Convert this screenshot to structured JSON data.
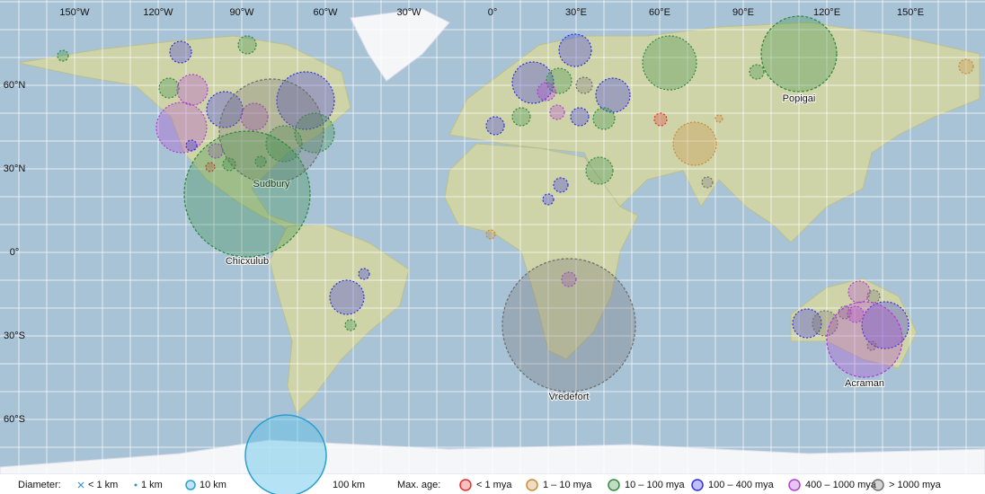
{
  "map": {
    "lon_ticks": [
      {
        "value": -150,
        "label": "150°W"
      },
      {
        "value": -120,
        "label": "120°W"
      },
      {
        "value": -90,
        "label": "90°W"
      },
      {
        "value": -60,
        "label": "60°W"
      },
      {
        "value": -30,
        "label": "30°W"
      },
      {
        "value": 0,
        "label": "0°"
      },
      {
        "value": 30,
        "label": "30°E"
      },
      {
        "value": 60,
        "label": "60°E"
      },
      {
        "value": 90,
        "label": "90°E"
      },
      {
        "value": 120,
        "label": "120°E"
      },
      {
        "value": 150,
        "label": "150°E"
      }
    ],
    "lat_ticks": [
      {
        "value": 60,
        "label": "60°N"
      },
      {
        "value": 30,
        "label": "30°N"
      },
      {
        "value": 0,
        "label": "0°"
      },
      {
        "value": -30,
        "label": "30°S"
      },
      {
        "value": -60,
        "label": "60°S"
      }
    ],
    "craters": [
      {
        "name": "Sudbury",
        "color": "#707070"
      },
      {
        "name": "Chicxulub",
        "color": "#2e8b3e"
      },
      {
        "name": "Popigai",
        "color": "#2e8b3e"
      },
      {
        "name": "Vredefort",
        "color": "#707070"
      },
      {
        "name": "Acraman",
        "color": "#b040d0"
      }
    ]
  },
  "legend": {
    "diameter_title": "Diameter:",
    "diameter_items": [
      "< 1 km",
      "1 km",
      "10 km",
      "100 km"
    ],
    "age_title": "Max. age:",
    "age_items": [
      {
        "label": "< 1 mya",
        "color": "#e03030"
      },
      {
        "label": "1 – 10 mya",
        "color": "#c98a3a"
      },
      {
        "label": "10 – 100 mya",
        "color": "#2e8b3e"
      },
      {
        "label": "100 – 400 mya",
        "color": "#3030e0"
      },
      {
        "label": "400 – 1000 mya",
        "color": "#b040d0"
      },
      {
        "label": "> 1000 mya",
        "color": "#707070"
      }
    ]
  }
}
